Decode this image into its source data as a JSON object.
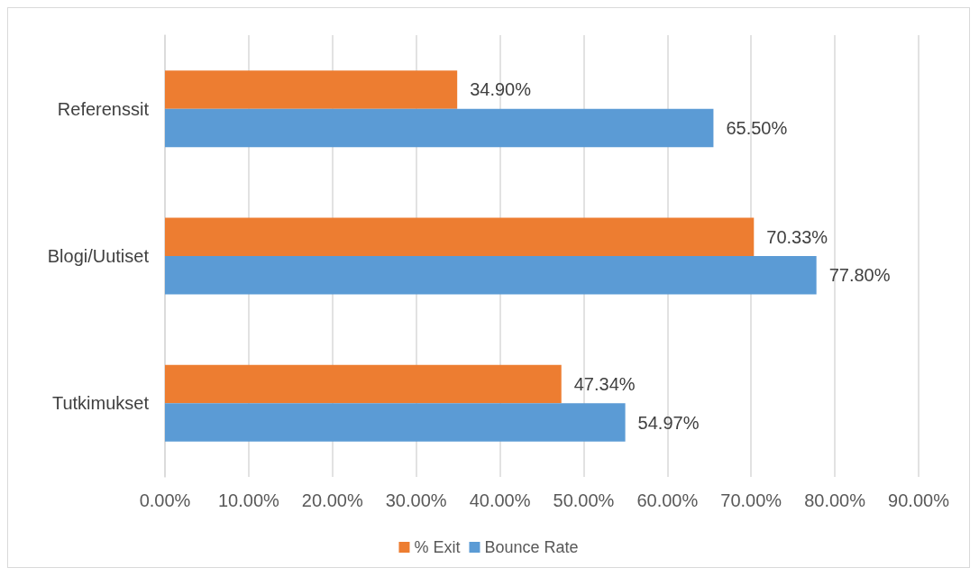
{
  "chart_data": {
    "type": "bar",
    "orientation": "horizontal",
    "categories": [
      "Referenssit",
      "Blogi/Uutiset",
      "Tutkimukset"
    ],
    "series": [
      {
        "name": "% Exit",
        "color": "#ed7d31",
        "values": [
          34.9,
          70.33,
          47.34
        ],
        "value_labels": [
          "34.90%",
          "70.33%",
          "47.34%"
        ]
      },
      {
        "name": "Bounce Rate",
        "color": "#5b9bd5",
        "values": [
          65.5,
          77.8,
          54.97
        ],
        "value_labels": [
          "65.50%",
          "77.80%",
          "54.97%"
        ]
      }
    ],
    "xlim": [
      0,
      90
    ],
    "xticks": [
      {
        "value": 0,
        "label": "0.00%"
      },
      {
        "value": 10,
        "label": "10.00%"
      },
      {
        "value": 20,
        "label": "20.00%"
      },
      {
        "value": 30,
        "label": "30.00%"
      },
      {
        "value": 40,
        "label": "40.00%"
      },
      {
        "value": 50,
        "label": "50.00%"
      },
      {
        "value": 60,
        "label": "60.00%"
      },
      {
        "value": 70,
        "label": "70.00%"
      },
      {
        "value": 80,
        "label": "80.00%"
      },
      {
        "value": 90,
        "label": "90.00%"
      }
    ],
    "grid": "x",
    "legend": "bottom"
  }
}
